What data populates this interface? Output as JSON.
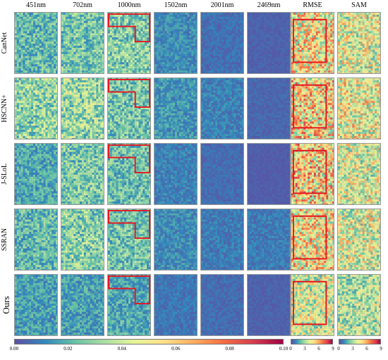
{
  "columns": [
    "451nm",
    "702nm",
    "1000nm",
    "1502nm",
    "2001nm",
    "2469nm",
    "RMSE",
    "SAM"
  ],
  "methods": [
    "CanNet",
    "HSCNN+",
    "J-SLoL",
    "SSRAN",
    "Ours"
  ],
  "error_colorbar": {
    "ticks": [
      "0.00",
      "0.02",
      "0.04",
      "0.06",
      "0.08",
      "0.10"
    ],
    "colormap": [
      "#5e4fa2",
      "#3288bd",
      "#66c2a5",
      "#abdda4",
      "#e6f598",
      "#fee08b",
      "#fdae61",
      "#f46d43",
      "#d53e4f",
      "#9e0142"
    ]
  },
  "rmse_colorbar": {
    "ticks": [
      "0",
      "3",
      "6",
      "9"
    ]
  },
  "sam_colorbar": {
    "ticks": [
      "0",
      "3",
      "6",
      "9"
    ]
  },
  "highlight_color": "#e8141e"
}
